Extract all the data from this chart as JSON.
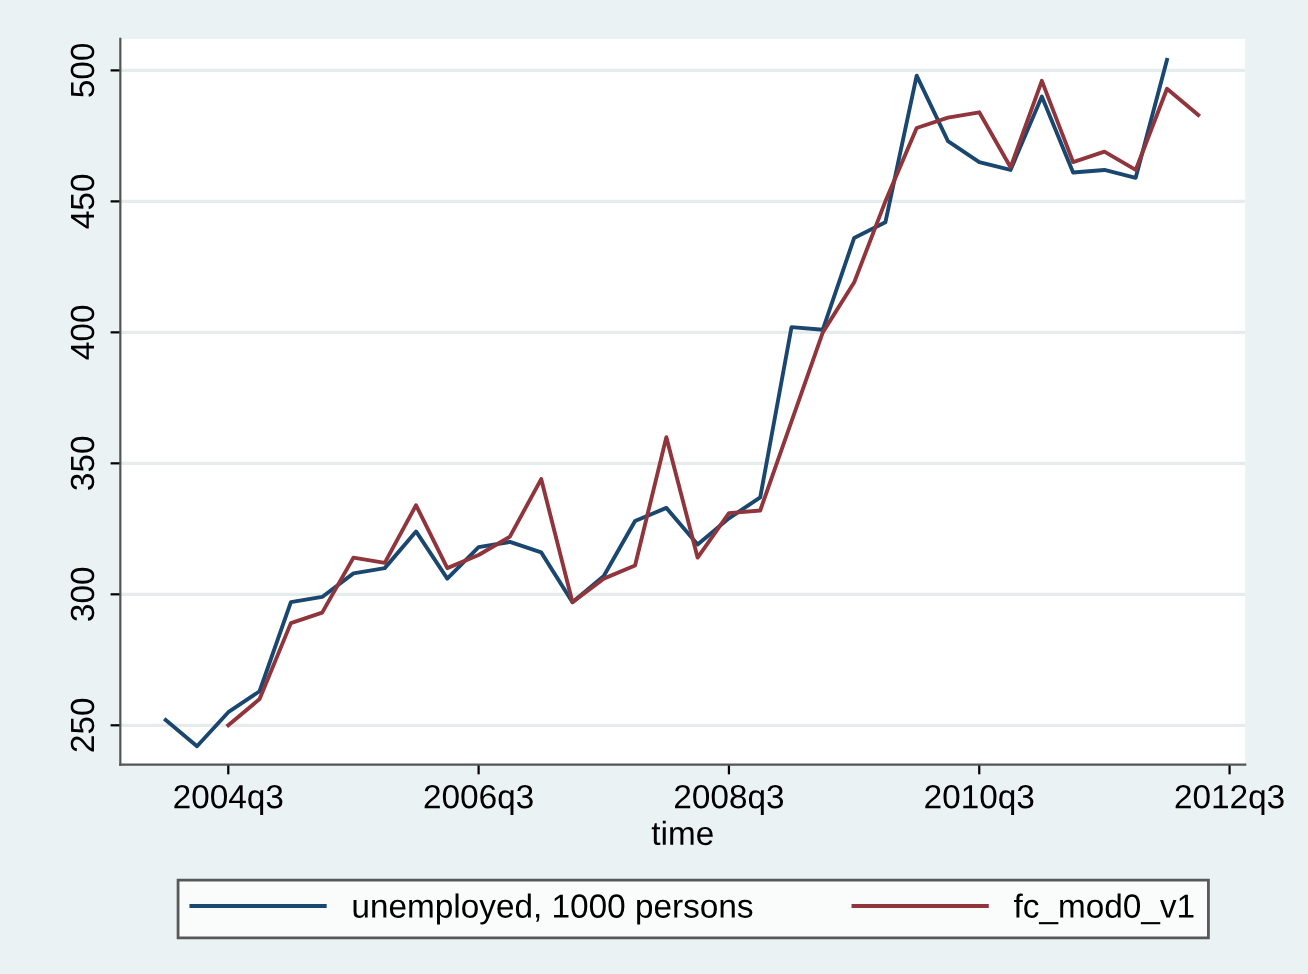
{
  "chart_data": {
    "type": "line",
    "xlabel": "time",
    "categories": [
      null,
      null,
      "2004q3",
      null,
      null,
      null,
      null,
      null,
      null,
      null,
      "2006q3",
      null,
      null,
      null,
      null,
      null,
      null,
      null,
      "2008q3",
      null,
      null,
      null,
      null,
      null,
      null,
      null,
      "2010q3",
      null,
      null,
      null,
      null,
      null,
      null,
      null,
      "2012q3"
    ],
    "ylim": [
      235,
      512
    ],
    "yticks": [
      250,
      300,
      350,
      400,
      450,
      500
    ],
    "grid": "y",
    "legend": "bottom",
    "marker": "none",
    "line_style": "solid",
    "series": [
      {
        "name": "unemployed, 1000 persons",
        "color": "#1a476f",
        "values": [
          252,
          242,
          255,
          263,
          297,
          299,
          308,
          310,
          324,
          306,
          318,
          320,
          316,
          297,
          307,
          328,
          333,
          319,
          329,
          337,
          402,
          401,
          436,
          442,
          498,
          473,
          465,
          462,
          490,
          461,
          462,
          459,
          504,
          null,
          null
        ]
      },
      {
        "name": "fc_mod0_v1",
        "color": "#90353b",
        "values": [
          null,
          null,
          250,
          260,
          289,
          293,
          314,
          312,
          334,
          310,
          315,
          322,
          344,
          297,
          306,
          311,
          360,
          314,
          331,
          332,
          366,
          400,
          419,
          450,
          478,
          482,
          484,
          463,
          496,
          465,
          469,
          462,
          493,
          483,
          null
        ]
      }
    ]
  }
}
